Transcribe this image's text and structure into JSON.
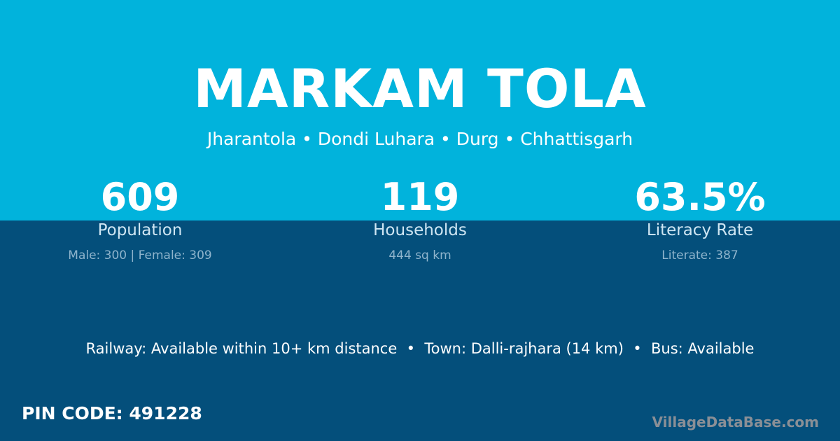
{
  "colors": {
    "top": "#01b3dc",
    "bottom": "#044f7b"
  },
  "title": "MARKAM TOLA",
  "subtitle": "Jharantola • Dondi Luhara • Durg • Chhattisgarh",
  "stats": [
    {
      "value": "609",
      "label": "Population",
      "detail": "Male: 300 | Female: 309"
    },
    {
      "value": "119",
      "label": "Households",
      "detail": "444 sq km"
    },
    {
      "value": "63.5%",
      "label": "Literacy Rate",
      "detail": "Literate: 387"
    }
  ],
  "info": "Railway: Available within 10+ km distance  •  Town: Dalli-rajhara (14 km)  •  Bus: Available",
  "pin": "PIN CODE: 491228",
  "logo": "VillageDataBase.com"
}
